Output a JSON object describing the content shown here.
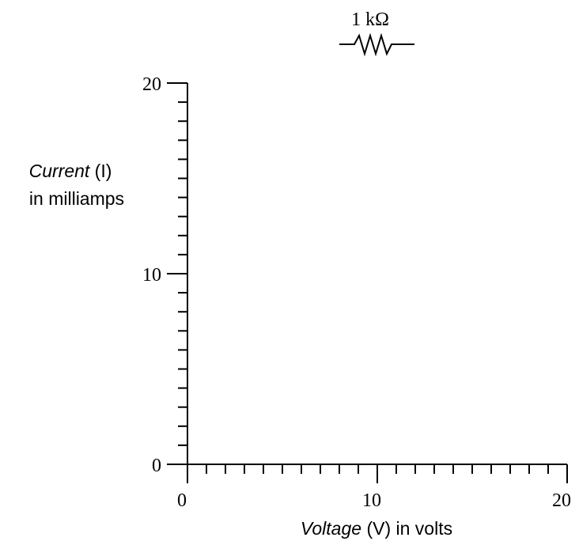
{
  "chart_data": {
    "type": "line",
    "title": "",
    "annotation": {
      "resistor_label": "1 kΩ",
      "symbol": "resistor-icon"
    },
    "xlabel": {
      "italic": "Voltage",
      "rest": " (V) in volts"
    },
    "ylabel": {
      "line1_italic": "Current",
      "line1_rest": " (I)",
      "line2": "in milliamps"
    },
    "xlim": [
      0,
      20
    ],
    "ylim": [
      0,
      20
    ],
    "x_major_ticks": [
      0,
      10,
      20
    ],
    "y_major_ticks": [
      0,
      10,
      20
    ],
    "x_minor_step": 1,
    "y_minor_step": 1,
    "x_tick_labels": [
      "0",
      "10",
      "20"
    ],
    "y_tick_labels": [
      "0",
      "10",
      "20"
    ],
    "series": [],
    "grid": false
  }
}
